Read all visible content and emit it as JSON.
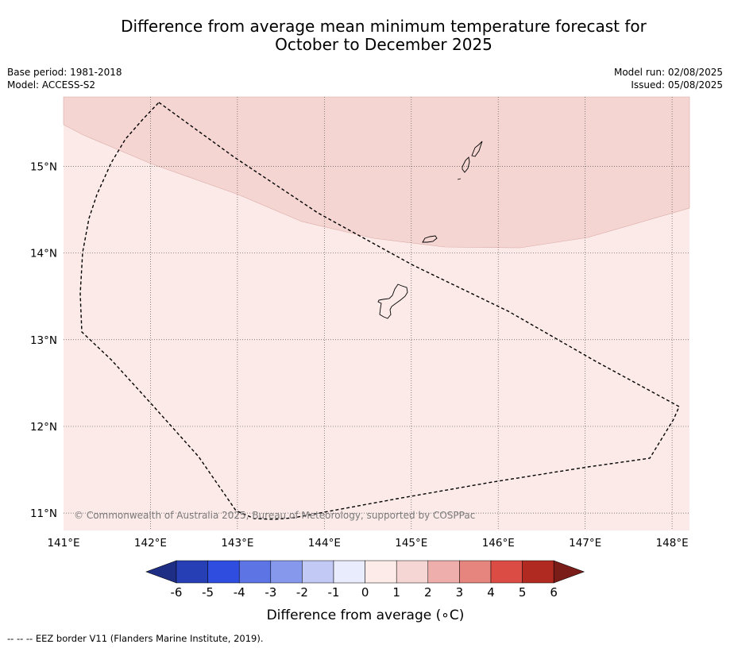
{
  "title_line1": "Difference from average mean minimum temperature forecast for",
  "title_line2": "October to December 2025",
  "meta": {
    "base_period": "Base period: 1981-2018",
    "model": "Model: ACCESS-S2",
    "model_run": "Model run: 02/08/2025",
    "issued": "Issued: 05/08/2025"
  },
  "map": {
    "lon_labels": [
      "141°E",
      "142°E",
      "143°E",
      "144°E",
      "145°E",
      "146°E",
      "147°E",
      "148°E"
    ],
    "lat_labels": [
      "15°N",
      "14°N",
      "13°N",
      "12°N",
      "11°N"
    ],
    "lon_range": [
      141,
      148.2
    ],
    "lat_range": [
      10.8,
      15.8
    ],
    "copyright": "© Commonwealth of Australia 2025, Bureau of Meteorology, supported by COSPPac",
    "region_colors": {
      "zero_to_one": "#fceae8",
      "one_to_two": "#f5d5d2"
    }
  },
  "colorbar": {
    "ticks": [
      "-6",
      "-5",
      "-4",
      "-3",
      "-2",
      "-1",
      "0",
      "1",
      "2",
      "3",
      "4",
      "5",
      "6"
    ],
    "colors": [
      "#1e2e85",
      "#273fb5",
      "#2f4ddf",
      "#5c74e4",
      "#8598ec",
      "#c2c9f4",
      "#e9ecfc",
      "#fcebe9",
      "#f6d6d4",
      "#eeaeab",
      "#e6847e",
      "#db4d44",
      "#b02a22",
      "#7a1d19"
    ],
    "title": "Difference from average (",
    "title_unit": "∘C)"
  },
  "footnote": "--  --  -- EEZ border V11 (Flanders Marine Institute, 2019)."
}
